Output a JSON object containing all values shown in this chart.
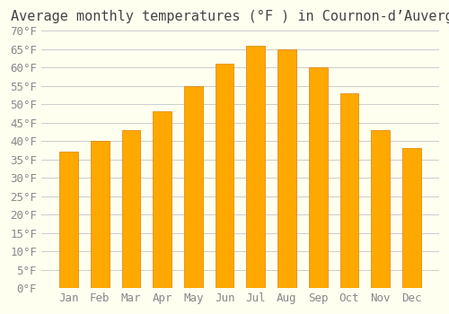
{
  "title": "Average monthly temperatures (°F ) in Cournon-d’Auvergne",
  "months": [
    "Jan",
    "Feb",
    "Mar",
    "Apr",
    "May",
    "Jun",
    "Jul",
    "Aug",
    "Sep",
    "Oct",
    "Nov",
    "Dec"
  ],
  "values": [
    37,
    40,
    43,
    48,
    55,
    61,
    66,
    65,
    60,
    53,
    43,
    38
  ],
  "bar_color": "#FFA800",
  "bar_edge_color": "#E08000",
  "background_color": "#FFFFF0",
  "grid_color": "#CCCCCC",
  "ylim": [
    0,
    70
  ],
  "yticks": [
    0,
    5,
    10,
    15,
    20,
    25,
    30,
    35,
    40,
    45,
    50,
    55,
    60,
    65,
    70
  ],
  "ylabel_suffix": "°F",
  "title_fontsize": 11,
  "tick_fontsize": 9
}
